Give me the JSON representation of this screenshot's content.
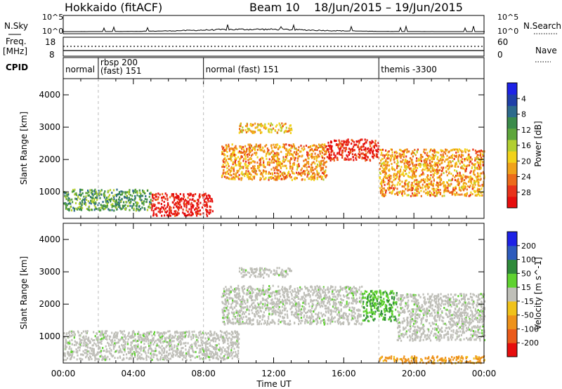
{
  "header": {
    "site": "Hokkaido (fitACF)",
    "beam": "Beam 10",
    "dates": "18/Jun/2015 – 19/Jun/2015"
  },
  "chart_data": [
    {
      "type": "line",
      "panel": "noise",
      "left_label": "N.Sky",
      "right_label": "N.Search",
      "left_ticks": [
        "10^5",
        "10^0"
      ],
      "right_ticks": [
        "10^5",
        "10^0"
      ]
    },
    {
      "type": "line",
      "panel": "frequency / nave",
      "left_label": "Freq.",
      "left_unit": "[MHz]",
      "right_label": "Nave",
      "left_ticks": [
        "18",
        "8"
      ],
      "right_ticks": [
        "60",
        "0"
      ]
    },
    {
      "type": "table",
      "panel": "cpid",
      "label": "CPID",
      "segments": [
        {
          "start_hr": 0,
          "name": "normal"
        },
        {
          "start_hr": 2,
          "name": "rbsp 200\n(fast) 151"
        },
        {
          "start_hr": 8,
          "name": "normal (fast) 151"
        },
        {
          "start_hr": 18,
          "name": "themis -3300"
        }
      ]
    },
    {
      "type": "heatmap",
      "parameter": "Power",
      "colorbar_label": "Power [dB]",
      "colorbar_ticks": [
        "4",
        "8",
        "12",
        "16",
        "20",
        "24",
        "28"
      ],
      "colorscale": [
        "#1d22e6",
        "#1f3fa8",
        "#2d6a8c",
        "#3a8b4a",
        "#5ea63b",
        "#b2cf30",
        "#f2d21a",
        "#f0a21a",
        "#ec6b1a",
        "#e8321a",
        "#e60d0d"
      ],
      "ylabel": "Slant Range [km]",
      "ylim": [
        180,
        4500
      ],
      "yticks": [
        1000,
        2000,
        3000,
        4000
      ],
      "xlim": [
        0,
        24
      ],
      "features": [
        {
          "t_start": 5,
          "t_end": 8.5,
          "range_start": 280,
          "range_end": 980,
          "value_db": 30
        },
        {
          "t_start": 9,
          "t_end": 15,
          "range_start": 1400,
          "range_end": 2500,
          "value_db": 22
        },
        {
          "t_start": 15,
          "t_end": 18,
          "range_start": 2000,
          "range_end": 2650,
          "value_db": 29
        },
        {
          "t_start": 18,
          "t_end": 24,
          "range_start": 900,
          "range_end": 2350,
          "value_db": 22
        },
        {
          "t_start": 10,
          "t_end": 13,
          "range_start": 2850,
          "range_end": 3150,
          "value_db": 20
        },
        {
          "t_start": 0,
          "t_end": 5,
          "range_start": 450,
          "range_end": 1100,
          "value_db": 12
        }
      ]
    },
    {
      "type": "heatmap",
      "parameter": "Velocity",
      "colorbar_label": "Velocity [m s^-1]",
      "colorbar_ticks": [
        "200",
        "100",
        "50",
        "15",
        "-15",
        "-50",
        "-100",
        "-200"
      ],
      "colorscale": [
        "#1d22e6",
        "#2d5bbd",
        "#2f8a3a",
        "#5fd22f",
        "#bfbfb8",
        "#f0c21a",
        "#ee921a",
        "#ea5a1a",
        "#e60d0d"
      ],
      "ylabel": "Slant Range [km]",
      "ylim": [
        180,
        4500
      ],
      "yticks": [
        1000,
        2000,
        3000,
        4000
      ],
      "xlabel": "Time UT",
      "xticks": [
        "00:00",
        "04:00",
        "08:00",
        "12:00",
        "16:00",
        "20:00",
        "00:00"
      ],
      "xlim": [
        0,
        24
      ],
      "features": [
        {
          "t_start": 0,
          "t_end": 10,
          "range_start": 300,
          "range_end": 1200,
          "value_ms": 0
        },
        {
          "t_start": 9,
          "t_end": 17,
          "range_start": 1400,
          "range_end": 2600,
          "value_ms": 0
        },
        {
          "t_start": 17,
          "t_end": 19,
          "range_start": 1500,
          "range_end": 2450,
          "value_ms": 40
        },
        {
          "t_start": 19,
          "t_end": 24,
          "range_start": 900,
          "range_end": 2350,
          "value_ms": 0
        },
        {
          "t_start": 10,
          "t_end": 13,
          "range_start": 2850,
          "range_end": 3150,
          "value_ms": 0
        },
        {
          "t_start": 18,
          "t_end": 24,
          "range_start": 200,
          "range_end": 420,
          "value_ms": -60
        }
      ]
    }
  ]
}
